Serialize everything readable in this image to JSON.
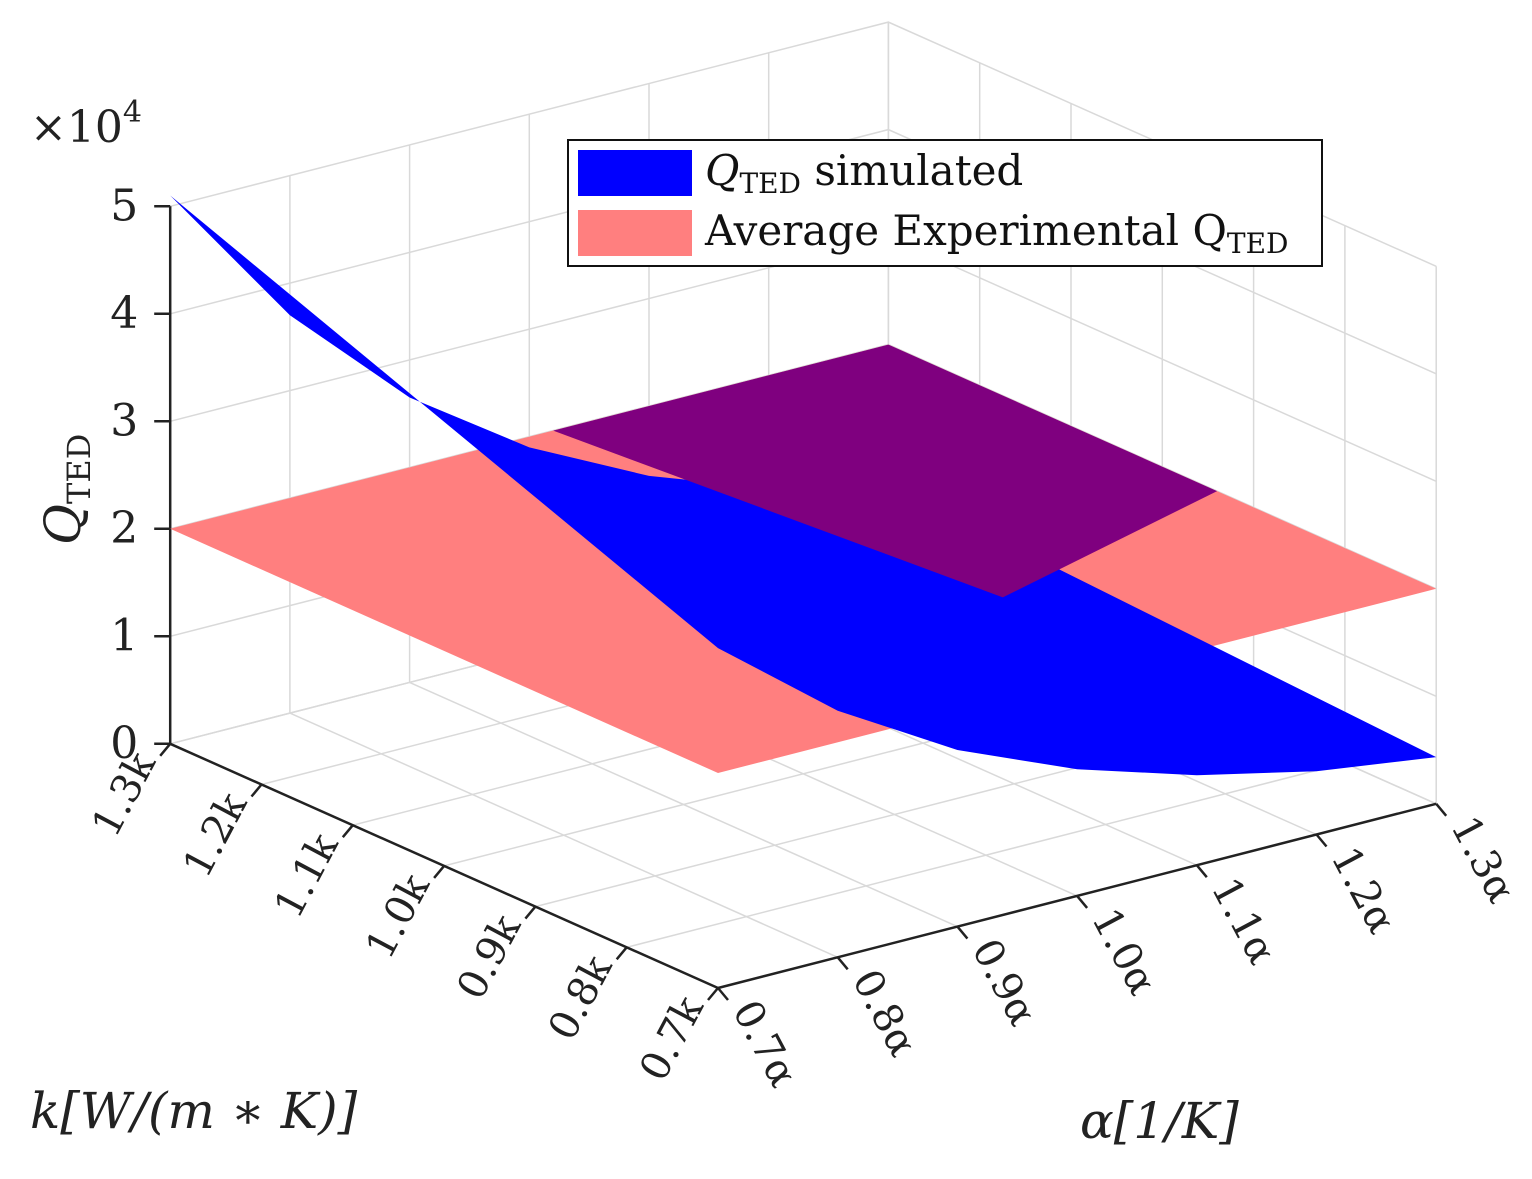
{
  "chart_data": {
    "type": "surface3d",
    "title": "",
    "zlabel": "Q",
    "zlabel_sub": "TED",
    "xlabel": "k[W/(m ∗ K)]",
    "ylabel": "α[1/K]",
    "zlim": [
      0,
      50000
    ],
    "z_multiplier": "×10",
    "z_multiplier_exp": "4",
    "z_ticks": [
      "0",
      "1",
      "2",
      "3",
      "4",
      "5"
    ],
    "k_ticks": [
      "1.3k",
      "1.2k",
      "1.1k",
      "1.0k",
      "0.9k",
      "0.8k",
      "0.7k"
    ],
    "alpha_ticks": [
      "0.7α",
      "0.8α",
      "0.9α",
      "1.0α",
      "1.1α",
      "1.2α",
      "1.3α"
    ],
    "k_values": [
      0.7,
      0.8,
      0.9,
      1.0,
      1.1,
      1.2,
      1.3
    ],
    "alpha_values": [
      0.7,
      0.8,
      0.9,
      1.0,
      1.1,
      1.2,
      1.3
    ],
    "grid": true,
    "legend_position": "top-right",
    "series": [
      {
        "legend_main": "Q",
        "legend_sub": "TED",
        "legend_suffix": " simulated",
        "color": "#0000ff",
        "surface": "simulated",
        "z_along_alpha_at_k_1_3": [
          51000,
          37000,
          26500,
          19000,
          13500,
          9500,
          7000
        ]
      },
      {
        "legend_main": "Average Experimental Q",
        "legend_sub": "TED",
        "legend_suffix": "",
        "color": "#ff7f7f",
        "surface": "experimental-average",
        "z_constant": 20000
      }
    ]
  }
}
